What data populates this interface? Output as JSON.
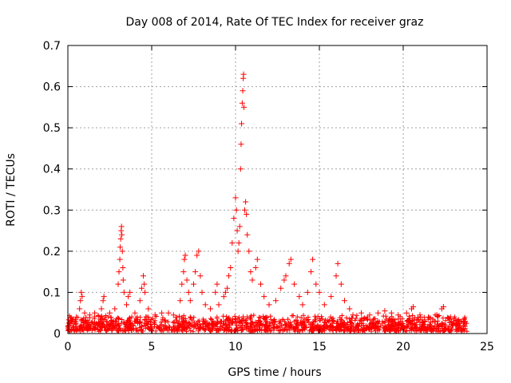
{
  "chart_data": {
    "type": "scatter",
    "title": "Day 008 of 2014, Rate Of TEC Index for receiver graz",
    "xlabel": "GPS time / hours",
    "ylabel": "ROTI / TECUs",
    "xlim": [
      0,
      25
    ],
    "ylim": [
      0,
      0.7
    ],
    "grid": true,
    "marker": "+",
    "color": "#ff0000",
    "x_ticks": [
      0,
      5,
      10,
      15,
      20,
      25
    ],
    "x_tick_labels": [
      "0",
      "5",
      "10",
      "15",
      "20",
      "25"
    ],
    "y_ticks": [
      0,
      0.1,
      0.2,
      0.3,
      0.4,
      0.5,
      0.6,
      0.7
    ],
    "y_tick_labels": [
      "0",
      "0.1",
      "0.2",
      "0.3",
      "0.4",
      "0.5",
      "0.6",
      "0.7"
    ],
    "background_band": {
      "x_range": [
        0,
        23.8
      ],
      "y_max": 0.045
    },
    "series": [
      {
        "name": "ROTI",
        "points": [
          [
            0.1,
            0.02
          ],
          [
            0.2,
            0.03
          ],
          [
            0.3,
            0.035
          ],
          [
            0.5,
            0.04
          ],
          [
            0.7,
            0.06
          ],
          [
            0.75,
            0.08
          ],
          [
            0.8,
            0.1
          ],
          [
            0.85,
            0.09
          ],
          [
            1.0,
            0.05
          ],
          [
            1.3,
            0.045
          ],
          [
            1.6,
            0.05
          ],
          [
            2.0,
            0.06
          ],
          [
            2.1,
            0.08
          ],
          [
            2.15,
            0.09
          ],
          [
            2.5,
            0.05
          ],
          [
            2.8,
            0.06
          ],
          [
            3.0,
            0.12
          ],
          [
            3.05,
            0.15
          ],
          [
            3.1,
            0.18
          ],
          [
            3.12,
            0.21
          ],
          [
            3.15,
            0.23
          ],
          [
            3.18,
            0.25
          ],
          [
            3.2,
            0.26
          ],
          [
            3.22,
            0.24
          ],
          [
            3.25,
            0.2
          ],
          [
            3.28,
            0.16
          ],
          [
            3.3,
            0.13
          ],
          [
            3.35,
            0.1
          ],
          [
            3.5,
            0.07
          ],
          [
            3.6,
            0.09
          ],
          [
            3.7,
            0.1
          ],
          [
            4.0,
            0.05
          ],
          [
            4.3,
            0.08
          ],
          [
            4.4,
            0.11
          ],
          [
            4.5,
            0.14
          ],
          [
            4.55,
            0.12
          ],
          [
            4.6,
            0.1
          ],
          [
            4.8,
            0.06
          ],
          [
            5.2,
            0.045
          ],
          [
            5.6,
            0.05
          ],
          [
            6.0,
            0.05
          ],
          [
            6.3,
            0.045
          ],
          [
            6.7,
            0.08
          ],
          [
            6.8,
            0.12
          ],
          [
            6.9,
            0.15
          ],
          [
            6.95,
            0.18
          ],
          [
            7.0,
            0.19
          ],
          [
            7.1,
            0.13
          ],
          [
            7.2,
            0.1
          ],
          [
            7.3,
            0.08
          ],
          [
            7.5,
            0.12
          ],
          [
            7.6,
            0.15
          ],
          [
            7.7,
            0.19
          ],
          [
            7.8,
            0.2
          ],
          [
            7.9,
            0.14
          ],
          [
            8.0,
            0.1
          ],
          [
            8.2,
            0.07
          ],
          [
            8.5,
            0.06
          ],
          [
            8.8,
            0.1
          ],
          [
            8.9,
            0.12
          ],
          [
            9.0,
            0.07
          ],
          [
            9.3,
            0.09
          ],
          [
            9.4,
            0.1
          ],
          [
            9.5,
            0.11
          ],
          [
            9.6,
            0.14
          ],
          [
            9.7,
            0.16
          ],
          [
            9.8,
            0.22
          ],
          [
            9.9,
            0.28
          ],
          [
            10.0,
            0.33
          ],
          [
            10.05,
            0.3
          ],
          [
            10.1,
            0.25
          ],
          [
            10.15,
            0.2
          ],
          [
            10.2,
            0.22
          ],
          [
            10.25,
            0.26
          ],
          [
            10.3,
            0.4
          ],
          [
            10.33,
            0.46
          ],
          [
            10.36,
            0.51
          ],
          [
            10.4,
            0.56
          ],
          [
            10.43,
            0.59
          ],
          [
            10.46,
            0.62
          ],
          [
            10.48,
            0.63
          ],
          [
            10.5,
            0.55
          ],
          [
            10.55,
            0.3
          ],
          [
            10.6,
            0.32
          ],
          [
            10.65,
            0.29
          ],
          [
            10.7,
            0.24
          ],
          [
            10.8,
            0.2
          ],
          [
            10.9,
            0.15
          ],
          [
            11.0,
            0.13
          ],
          [
            11.2,
            0.16
          ],
          [
            11.3,
            0.18
          ],
          [
            11.5,
            0.12
          ],
          [
            11.7,
            0.09
          ],
          [
            12.0,
            0.07
          ],
          [
            12.4,
            0.08
          ],
          [
            12.7,
            0.11
          ],
          [
            12.9,
            0.13
          ],
          [
            13.0,
            0.14
          ],
          [
            13.2,
            0.17
          ],
          [
            13.3,
            0.18
          ],
          [
            13.5,
            0.12
          ],
          [
            13.8,
            0.09
          ],
          [
            14.0,
            0.07
          ],
          [
            14.3,
            0.1
          ],
          [
            14.5,
            0.15
          ],
          [
            14.6,
            0.18
          ],
          [
            14.8,
            0.12
          ],
          [
            15.0,
            0.1
          ],
          [
            15.3,
            0.07
          ],
          [
            15.7,
            0.09
          ],
          [
            16.0,
            0.14
          ],
          [
            16.1,
            0.17
          ],
          [
            16.3,
            0.12
          ],
          [
            16.5,
            0.08
          ],
          [
            16.8,
            0.06
          ],
          [
            17.0,
            0.045
          ],
          [
            17.5,
            0.05
          ],
          [
            18.0,
            0.045
          ],
          [
            18.5,
            0.05
          ],
          [
            18.9,
            0.055
          ],
          [
            19.3,
            0.05
          ],
          [
            19.7,
            0.045
          ],
          [
            20.2,
            0.05
          ],
          [
            20.5,
            0.06
          ],
          [
            20.6,
            0.065
          ],
          [
            21.0,
            0.045
          ],
          [
            21.5,
            0.04
          ],
          [
            22.0,
            0.045
          ],
          [
            22.3,
            0.06
          ],
          [
            22.4,
            0.065
          ],
          [
            22.8,
            0.035
          ],
          [
            23.2,
            0.03
          ],
          [
            23.6,
            0.025
          ]
        ]
      }
    ]
  }
}
